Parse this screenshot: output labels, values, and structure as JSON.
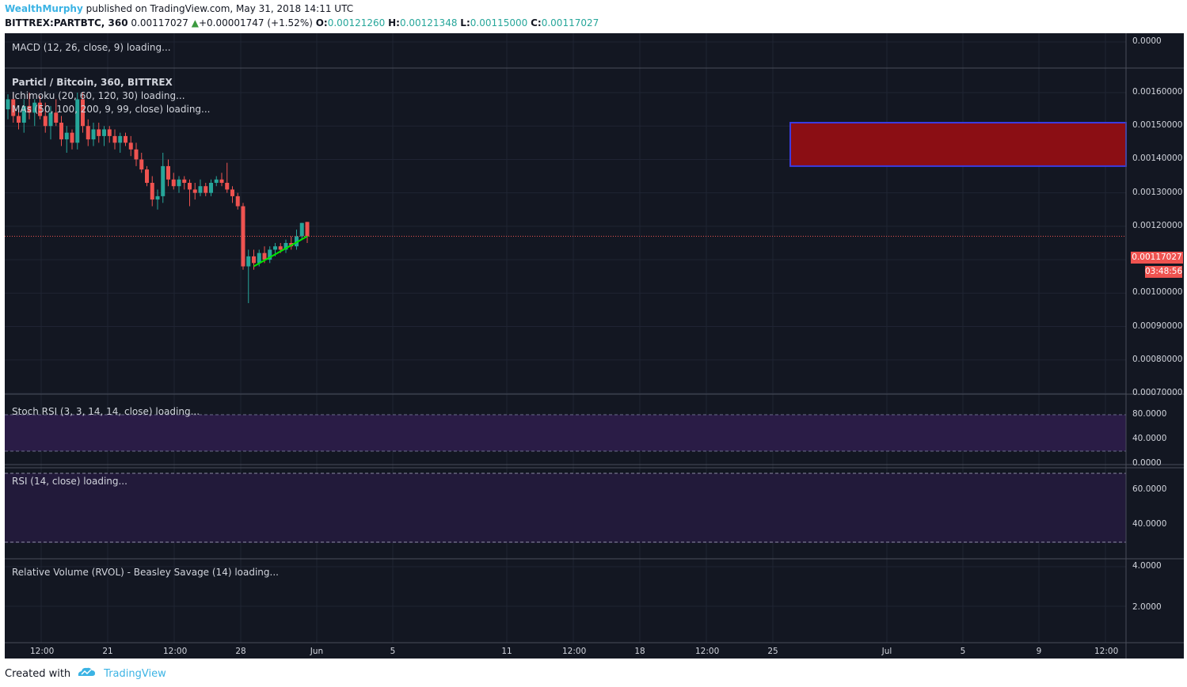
{
  "header": {
    "author": "WealthMurphy",
    "published_text": " published on TradingView.com, May 31, 2018 14:11 UTC",
    "symbol": "BITTREX:PARTBTC, 360",
    "last_price": "0.00117027",
    "change_arrow": "▲",
    "change": "+0.00001747 (+1.52%)",
    "o_label": "O:",
    "o_value": "0.00121260",
    "h_label": "H:",
    "h_value": "0.00121348",
    "l_label": "L:",
    "l_value": "0.00115000",
    "c_label": "C:",
    "c_value": "0.00117027"
  },
  "indicators": {
    "macd": "MACD (12, 26, close, 9) loading...",
    "main_title": "Particl / Bitcoin, 360, BITTREX",
    "ichimoku": "Ichimoku (20, 60, 120, 30) loading...",
    "mas": "MAs (50, 100, 200, 9, 99, close) loading...",
    "stoch_rsi": "Stoch RSI (3, 3, 14, 14, close) loading...",
    "rsi": "RSI (14, close) loading...",
    "rvol": "Relative Volume (RVOL) - Beasley Savage (14) loading..."
  },
  "price_axis": {
    "macd_ticks": [
      "0.0000"
    ],
    "main_ticks": [
      "0.00160000",
      "0.00150000",
      "0.00140000",
      "0.00130000",
      "0.00120000",
      "0.00110000",
      "0.00100000",
      "0.00090000",
      "0.00080000",
      "0.00070000"
    ],
    "stoch_ticks": [
      "80.0000",
      "40.0000",
      "0.0000"
    ],
    "rsi_ticks": [
      "60.0000",
      "40.0000"
    ],
    "rvol_ticks": [
      "4.0000",
      "2.0000"
    ],
    "current_price": "0.00117027",
    "countdown": "03:48:56"
  },
  "time_axis": {
    "labels": [
      "12:00",
      "21",
      "12:00",
      "28",
      "Jun",
      "5",
      "11",
      "12:00",
      "18",
      "12:00",
      "25",
      "Jul",
      "5",
      "9",
      "12:00"
    ]
  },
  "colors": {
    "background": "#131722",
    "up": "#26a69a",
    "down": "#ef5350",
    "trendline": "#00e600",
    "zone_fill": "#8b0e14",
    "zone_border": "#3b3be0",
    "indicator_band": "#2a1c46",
    "brand": "#3bb3e4"
  },
  "footer": {
    "created_with": "Created with",
    "brand": "TradingView"
  },
  "chart_data": {
    "type": "candlestick",
    "title": "Particl / Bitcoin, 360, BITTREX",
    "ylim": [
      0.0007,
      0.0016
    ],
    "current_price": 0.00117027,
    "resistance_zone": [
      0.00138,
      0.00151
    ],
    "candles": [
      {
        "o": 0.00155,
        "h": 0.001595,
        "l": 0.00152,
        "c": 0.00158
      },
      {
        "o": 0.00158,
        "h": 0.0016,
        "l": 0.00151,
        "c": 0.00153
      },
      {
        "o": 0.00153,
        "h": 0.00156,
        "l": 0.00149,
        "c": 0.00151
      },
      {
        "o": 0.00151,
        "h": 0.00158,
        "l": 0.00148,
        "c": 0.00156
      },
      {
        "o": 0.00156,
        "h": 0.0016,
        "l": 0.00152,
        "c": 0.00154
      },
      {
        "o": 0.00154,
        "h": 0.00158,
        "l": 0.0015,
        "c": 0.00157
      },
      {
        "o": 0.00157,
        "h": 0.00159,
        "l": 0.00152,
        "c": 0.00153
      },
      {
        "o": 0.00153,
        "h": 0.00157,
        "l": 0.00148,
        "c": 0.0015
      },
      {
        "o": 0.0015,
        "h": 0.00156,
        "l": 0.00146,
        "c": 0.00154
      },
      {
        "o": 0.00154,
        "h": 0.00158,
        "l": 0.0015,
        "c": 0.00151
      },
      {
        "o": 0.00151,
        "h": 0.00153,
        "l": 0.00144,
        "c": 0.00146
      },
      {
        "o": 0.00146,
        "h": 0.0015,
        "l": 0.00142,
        "c": 0.00148
      },
      {
        "o": 0.00148,
        "h": 0.00149,
        "l": 0.00143,
        "c": 0.00145
      },
      {
        "o": 0.00145,
        "h": 0.0016,
        "l": 0.00143,
        "c": 0.00158
      },
      {
        "o": 0.00158,
        "h": 0.0016,
        "l": 0.00148,
        "c": 0.0015
      },
      {
        "o": 0.0015,
        "h": 0.00152,
        "l": 0.00144,
        "c": 0.00146
      },
      {
        "o": 0.00146,
        "h": 0.00151,
        "l": 0.00144,
        "c": 0.00149
      },
      {
        "o": 0.00149,
        "h": 0.00151,
        "l": 0.00145,
        "c": 0.00147
      },
      {
        "o": 0.00147,
        "h": 0.0015,
        "l": 0.00144,
        "c": 0.00149
      },
      {
        "o": 0.00149,
        "h": 0.0015,
        "l": 0.00145,
        "c": 0.00147
      },
      {
        "o": 0.00147,
        "h": 0.00149,
        "l": 0.00143,
        "c": 0.00145
      },
      {
        "o": 0.00145,
        "h": 0.00148,
        "l": 0.00142,
        "c": 0.00147
      },
      {
        "o": 0.00147,
        "h": 0.00148,
        "l": 0.00144,
        "c": 0.00145
      },
      {
        "o": 0.00145,
        "h": 0.00147,
        "l": 0.00141,
        "c": 0.00143
      },
      {
        "o": 0.00143,
        "h": 0.00145,
        "l": 0.00138,
        "c": 0.0014
      },
      {
        "o": 0.0014,
        "h": 0.00142,
        "l": 0.00136,
        "c": 0.00137
      },
      {
        "o": 0.00137,
        "h": 0.00138,
        "l": 0.00132,
        "c": 0.00133
      },
      {
        "o": 0.00133,
        "h": 0.00135,
        "l": 0.00126,
        "c": 0.00128
      },
      {
        "o": 0.00128,
        "h": 0.00131,
        "l": 0.00125,
        "c": 0.00129
      },
      {
        "o": 0.00129,
        "h": 0.00142,
        "l": 0.00127,
        "c": 0.00138
      },
      {
        "o": 0.00138,
        "h": 0.0014,
        "l": 0.00132,
        "c": 0.00134
      },
      {
        "o": 0.00134,
        "h": 0.00136,
        "l": 0.00131,
        "c": 0.00132
      },
      {
        "o": 0.00132,
        "h": 0.00135,
        "l": 0.0013,
        "c": 0.00134
      },
      {
        "o": 0.00134,
        "h": 0.00135,
        "l": 0.00131,
        "c": 0.00133
      },
      {
        "o": 0.00133,
        "h": 0.00134,
        "l": 0.00126,
        "c": 0.00131
      },
      {
        "o": 0.00131,
        "h": 0.00133,
        "l": 0.00128,
        "c": 0.0013
      },
      {
        "o": 0.0013,
        "h": 0.00134,
        "l": 0.00129,
        "c": 0.00132
      },
      {
        "o": 0.00132,
        "h": 0.00133,
        "l": 0.00129,
        "c": 0.0013
      },
      {
        "o": 0.0013,
        "h": 0.00134,
        "l": 0.00129,
        "c": 0.00133
      },
      {
        "o": 0.00133,
        "h": 0.00135,
        "l": 0.00132,
        "c": 0.00134
      },
      {
        "o": 0.00134,
        "h": 0.00136,
        "l": 0.00132,
        "c": 0.00133
      },
      {
        "o": 0.00133,
        "h": 0.00139,
        "l": 0.0013,
        "c": 0.00131
      },
      {
        "o": 0.00131,
        "h": 0.00132,
        "l": 0.00127,
        "c": 0.00129
      },
      {
        "o": 0.00129,
        "h": 0.0013,
        "l": 0.00125,
        "c": 0.00126
      },
      {
        "o": 0.00126,
        "h": 0.00127,
        "l": 0.00107,
        "c": 0.00108
      },
      {
        "o": 0.00108,
        "h": 0.00113,
        "l": 0.00097,
        "c": 0.00111
      },
      {
        "o": 0.00111,
        "h": 0.00113,
        "l": 0.00107,
        "c": 0.00109
      },
      {
        "o": 0.00109,
        "h": 0.00113,
        "l": 0.00108,
        "c": 0.00112
      },
      {
        "o": 0.00112,
        "h": 0.00114,
        "l": 0.00109,
        "c": 0.0011
      },
      {
        "o": 0.0011,
        "h": 0.00114,
        "l": 0.00109,
        "c": 0.00113
      },
      {
        "o": 0.00113,
        "h": 0.00115,
        "l": 0.00111,
        "c": 0.00114
      },
      {
        "o": 0.00114,
        "h": 0.00115,
        "l": 0.00112,
        "c": 0.00113
      },
      {
        "o": 0.00113,
        "h": 0.00116,
        "l": 0.00112,
        "c": 0.00115
      },
      {
        "o": 0.00115,
        "h": 0.00117,
        "l": 0.00113,
        "c": 0.00114
      },
      {
        "o": 0.00114,
        "h": 0.00119,
        "l": 0.00113,
        "c": 0.00117
      },
      {
        "o": 0.00117,
        "h": 0.00121,
        "l": 0.00116,
        "c": 0.00121
      },
      {
        "o": 0.001213,
        "h": 0.001213,
        "l": 0.00115,
        "c": 0.00117
      }
    ],
    "trendline": [
      [
        46,
        0.00108
      ],
      [
        56,
        0.00117
      ]
    ]
  }
}
